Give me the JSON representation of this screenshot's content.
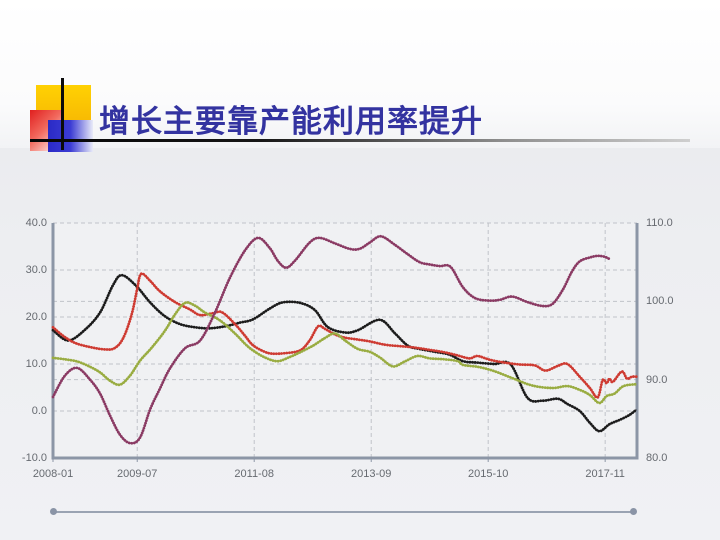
{
  "slide": {
    "title": "增长主要靠产能利用率提升"
  },
  "palette": {
    "title_color": "#3333a0",
    "axis_line": "#8c96a6",
    "gridline": "#c0c3c9",
    "label_color": "#666a70",
    "plot_fill": "#f0f1f3",
    "decor_yellow": "#ffc907",
    "decor_blue": "#2a2ac6",
    "decor_red": "#e01f1f",
    "bottom_line": "#9aa3b2"
  },
  "chart_data": {
    "type": "line",
    "title": "",
    "xlabel": "",
    "ylabel_left": "",
    "ylabel_right": "",
    "grid": true,
    "legend": "none",
    "x_axis": {
      "range": [
        2008.0,
        2018.4
      ],
      "tick_positions": [
        2008.0,
        2009.5,
        2011.583,
        2013.667,
        2015.75,
        2017.833
      ],
      "labels": [
        "2008-01",
        "2009-07",
        "2011-08",
        "2013-09",
        "2015-10",
        "2017-11"
      ]
    },
    "y_left": {
      "range": [
        -10,
        40
      ],
      "ticks": [
        40,
        30,
        20,
        10,
        0,
        -10
      ],
      "tick_labels": [
        "40.0",
        "30.0",
        "20.0",
        "10.0",
        "0.0",
        "-10.0"
      ],
      "gridlines": [
        0,
        10,
        20,
        30,
        40
      ]
    },
    "y_right": {
      "range": [
        80,
        110
      ],
      "ticks": [
        110,
        100,
        90,
        80
      ],
      "tick_labels": [
        "110.0",
        "100.0",
        "90.0",
        "80.0"
      ],
      "gridlines": [
        90,
        100
      ]
    },
    "series": [
      {
        "name": "series-black",
        "color": "#1c1c1c",
        "axis": "left",
        "points": [
          [
            2008.0,
            17.2
          ],
          [
            2008.27,
            15.0
          ],
          [
            2008.57,
            17.3
          ],
          [
            2008.84,
            21.0
          ],
          [
            2009.07,
            26.8
          ],
          [
            2009.23,
            28.9
          ],
          [
            2009.49,
            26.5
          ],
          [
            2009.73,
            23.1
          ],
          [
            2009.99,
            20.2
          ],
          [
            2010.26,
            18.5
          ],
          [
            2010.53,
            17.8
          ],
          [
            2010.79,
            17.6
          ],
          [
            2011.06,
            18.0
          ],
          [
            2011.33,
            18.8
          ],
          [
            2011.56,
            19.5
          ],
          [
            2011.86,
            21.8
          ],
          [
            2012.09,
            23.1
          ],
          [
            2012.4,
            23.0
          ],
          [
            2012.66,
            21.5
          ],
          [
            2012.89,
            17.9
          ],
          [
            2013.2,
            16.7
          ],
          [
            2013.43,
            17.2
          ],
          [
            2013.82,
            19.4
          ],
          [
            2014.09,
            16.5
          ],
          [
            2014.32,
            13.9
          ],
          [
            2014.53,
            13.2
          ],
          [
            2014.8,
            12.6
          ],
          [
            2015.06,
            12.0
          ],
          [
            2015.3,
            10.6
          ],
          [
            2015.56,
            10.3
          ],
          [
            2015.86,
            10.0
          ],
          [
            2016.15,
            9.9
          ],
          [
            2016.45,
            2.8
          ],
          [
            2016.72,
            2.2
          ],
          [
            2016.99,
            2.6
          ],
          [
            2017.16,
            1.5
          ],
          [
            2017.38,
            0.0
          ],
          [
            2017.56,
            -2.5
          ],
          [
            2017.73,
            -4.3
          ],
          [
            2017.91,
            -2.8
          ],
          [
            2018.09,
            -1.9
          ],
          [
            2018.27,
            -0.8
          ],
          [
            2018.39,
            0.3
          ]
        ]
      },
      {
        "name": "series-red",
        "color": "#ce3b32",
        "axis": "left",
        "points": [
          [
            2008.0,
            17.8
          ],
          [
            2008.18,
            16.0
          ],
          [
            2008.39,
            14.5
          ],
          [
            2008.66,
            13.6
          ],
          [
            2008.93,
            13.1
          ],
          [
            2009.1,
            13.4
          ],
          [
            2009.25,
            15.5
          ],
          [
            2009.4,
            20.5
          ],
          [
            2009.5,
            26.0
          ],
          [
            2009.57,
            29.2
          ],
          [
            2009.73,
            27.7
          ],
          [
            2009.9,
            25.5
          ],
          [
            2010.17,
            23.2
          ],
          [
            2010.44,
            21.6
          ],
          [
            2010.62,
            20.4
          ],
          [
            2010.85,
            20.8
          ],
          [
            2011.01,
            21.0
          ],
          [
            2011.24,
            18.5
          ],
          [
            2011.42,
            16.0
          ],
          [
            2011.56,
            14.0
          ],
          [
            2011.77,
            12.6
          ],
          [
            2011.91,
            12.2
          ],
          [
            2012.13,
            12.3
          ],
          [
            2012.4,
            12.9
          ],
          [
            2012.57,
            15.0
          ],
          [
            2012.72,
            18.0
          ],
          [
            2012.84,
            17.5
          ],
          [
            2013.02,
            16.3
          ],
          [
            2013.2,
            15.6
          ],
          [
            2013.43,
            15.2
          ],
          [
            2013.64,
            14.8
          ],
          [
            2013.91,
            14.1
          ],
          [
            2014.17,
            13.8
          ],
          [
            2014.44,
            13.5
          ],
          [
            2014.71,
            13.0
          ],
          [
            2014.97,
            12.5
          ],
          [
            2015.21,
            11.8
          ],
          [
            2015.42,
            11.2
          ],
          [
            2015.56,
            11.7
          ],
          [
            2015.78,
            10.9
          ],
          [
            2016.04,
            10.3
          ],
          [
            2016.31,
            9.9
          ],
          [
            2016.58,
            9.7
          ],
          [
            2016.77,
            8.6
          ],
          [
            2016.99,
            9.6
          ],
          [
            2017.16,
            10.0
          ],
          [
            2017.38,
            7.3
          ],
          [
            2017.56,
            4.9
          ],
          [
            2017.7,
            2.9
          ],
          [
            2017.79,
            6.6
          ],
          [
            2017.86,
            5.9
          ],
          [
            2017.91,
            6.9
          ],
          [
            2017.97,
            6.2
          ],
          [
            2018.13,
            8.4
          ],
          [
            2018.22,
            6.9
          ],
          [
            2018.31,
            7.3
          ],
          [
            2018.39,
            7.3
          ]
        ]
      },
      {
        "name": "series-green",
        "color": "#99ac41",
        "axis": "left",
        "points": [
          [
            2008.0,
            11.3
          ],
          [
            2008.21,
            11.0
          ],
          [
            2008.44,
            10.5
          ],
          [
            2008.66,
            9.4
          ],
          [
            2008.84,
            8.2
          ],
          [
            2009.01,
            6.5
          ],
          [
            2009.19,
            5.6
          ],
          [
            2009.37,
            7.5
          ],
          [
            2009.55,
            10.7
          ],
          [
            2009.76,
            13.5
          ],
          [
            2009.99,
            17.0
          ],
          [
            2010.17,
            20.5
          ],
          [
            2010.35,
            23.0
          ],
          [
            2010.53,
            22.4
          ],
          [
            2010.7,
            21.0
          ],
          [
            2010.97,
            19.3
          ],
          [
            2011.24,
            16.5
          ],
          [
            2011.42,
            14.3
          ],
          [
            2011.56,
            12.9
          ],
          [
            2011.77,
            11.4
          ],
          [
            2012.0,
            10.6
          ],
          [
            2012.22,
            11.5
          ],
          [
            2012.4,
            12.5
          ],
          [
            2012.63,
            13.9
          ],
          [
            2012.84,
            15.5
          ],
          [
            2013.02,
            16.5
          ],
          [
            2013.2,
            15.0
          ],
          [
            2013.43,
            13.2
          ],
          [
            2013.64,
            12.6
          ],
          [
            2013.82,
            11.4
          ],
          [
            2014.05,
            9.5
          ],
          [
            2014.26,
            10.5
          ],
          [
            2014.49,
            11.7
          ],
          [
            2014.71,
            11.2
          ],
          [
            2014.97,
            11.0
          ],
          [
            2015.21,
            10.6
          ],
          [
            2015.3,
            9.8
          ],
          [
            2015.56,
            9.4
          ],
          [
            2015.83,
            8.6
          ],
          [
            2016.18,
            7.0
          ],
          [
            2016.54,
            5.4
          ],
          [
            2016.9,
            4.9
          ],
          [
            2017.16,
            5.3
          ],
          [
            2017.38,
            4.5
          ],
          [
            2017.56,
            3.4
          ],
          [
            2017.73,
            1.7
          ],
          [
            2017.86,
            3.2
          ],
          [
            2018.0,
            3.7
          ],
          [
            2018.16,
            5.3
          ],
          [
            2018.39,
            5.7
          ]
        ]
      },
      {
        "name": "series-plum",
        "color": "#8a3a63",
        "axis": "right",
        "points": [
          [
            2008.0,
            87.8
          ],
          [
            2008.21,
            90.5
          ],
          [
            2008.43,
            91.5
          ],
          [
            2008.66,
            90.0
          ],
          [
            2008.84,
            88.2
          ],
          [
            2009.01,
            85.5
          ],
          [
            2009.19,
            83.0
          ],
          [
            2009.37,
            81.9
          ],
          [
            2009.55,
            82.6
          ],
          [
            2009.73,
            86.2
          ],
          [
            2009.9,
            88.8
          ],
          [
            2010.08,
            91.4
          ],
          [
            2010.35,
            94.0
          ],
          [
            2010.62,
            95.0
          ],
          [
            2010.88,
            98.5
          ],
          [
            2011.15,
            103.0
          ],
          [
            2011.42,
            106.5
          ],
          [
            2011.65,
            108.1
          ],
          [
            2011.86,
            106.8
          ],
          [
            2012.0,
            105.2
          ],
          [
            2012.15,
            104.3
          ],
          [
            2012.31,
            105.2
          ],
          [
            2012.57,
            107.5
          ],
          [
            2012.75,
            108.1
          ],
          [
            2013.02,
            107.4
          ],
          [
            2013.28,
            106.7
          ],
          [
            2013.46,
            106.7
          ],
          [
            2013.64,
            107.5
          ],
          [
            2013.84,
            108.3
          ],
          [
            2014.09,
            107.2
          ],
          [
            2014.32,
            106.0
          ],
          [
            2014.53,
            105.0
          ],
          [
            2014.71,
            104.7
          ],
          [
            2014.89,
            104.5
          ],
          [
            2015.08,
            104.4
          ],
          [
            2015.3,
            101.8
          ],
          [
            2015.52,
            100.4
          ],
          [
            2015.78,
            100.1
          ],
          [
            2015.96,
            100.2
          ],
          [
            2016.18,
            100.6
          ],
          [
            2016.45,
            99.9
          ],
          [
            2016.72,
            99.4
          ],
          [
            2016.9,
            99.7
          ],
          [
            2017.08,
            101.5
          ],
          [
            2017.24,
            103.8
          ],
          [
            2017.38,
            105.1
          ],
          [
            2017.56,
            105.6
          ],
          [
            2017.7,
            105.8
          ],
          [
            2017.82,
            105.7
          ],
          [
            2017.91,
            105.4
          ]
        ]
      }
    ]
  }
}
